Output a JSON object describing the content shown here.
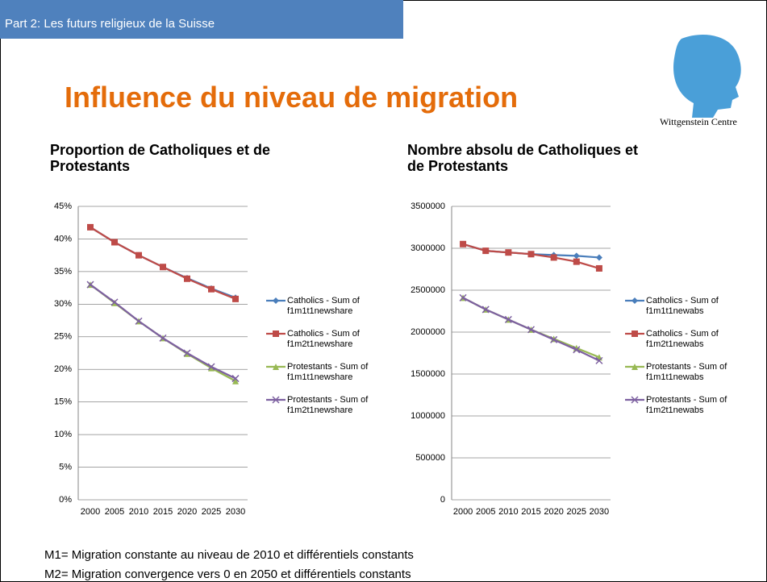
{
  "header": "Part 2: Les futurs religieux de la Suisse",
  "title": "Influence du niveau de migration",
  "logo_text": "Wittgenstein Centre",
  "chart_data": [
    {
      "type": "line",
      "title": "Proportion de Catholiques et de Protestants",
      "categories": [
        "2000",
        "2005",
        "2010",
        "2015",
        "2020",
        "2025",
        "2030"
      ],
      "ylim": [
        0,
        45
      ],
      "yticks": [
        {
          "value": 0,
          "label": "0%"
        },
        {
          "value": 5,
          "label": "5%"
        },
        {
          "value": 10,
          "label": "10%"
        },
        {
          "value": 15,
          "label": "15%"
        },
        {
          "value": 20,
          "label": "20%"
        },
        {
          "value": 25,
          "label": "25%"
        },
        {
          "value": 30,
          "label": "30%"
        },
        {
          "value": 35,
          "label": "35%"
        },
        {
          "value": 40,
          "label": "40%"
        },
        {
          "value": 45,
          "label": "45%"
        }
      ],
      "grid": true,
      "legend": "right",
      "series": [
        {
          "name": "Catholics - Sum of f1m1t1newshare",
          "color": "#4a7ebb",
          "marker": "diamond",
          "values": [
            41.8,
            39.5,
            37.5,
            35.7,
            34.0,
            32.4,
            31.0
          ]
        },
        {
          "name": "Catholics - Sum of f1m2t1newshare",
          "color": "#be4b48",
          "marker": "square",
          "values": [
            41.8,
            39.5,
            37.5,
            35.7,
            33.9,
            32.3,
            30.8
          ]
        },
        {
          "name": "Protestants - Sum of f1m1t1newshare",
          "color": "#98b954",
          "marker": "triangle",
          "values": [
            33.0,
            30.2,
            27.4,
            24.8,
            22.4,
            20.2,
            18.2
          ]
        },
        {
          "name": "Protestants - Sum of f1m2t1newshare",
          "color": "#7d60a0",
          "marker": "x",
          "values": [
            33.0,
            30.3,
            27.4,
            24.8,
            22.5,
            20.4,
            18.6
          ]
        }
      ]
    },
    {
      "type": "line",
      "title": "Nombre absolu de Catholiques et de Protestants",
      "categories": [
        "2000",
        "2005",
        "2010",
        "2015",
        "2020",
        "2025",
        "2030"
      ],
      "ylim": [
        0,
        3500000
      ],
      "yticks": [
        0,
        500000,
        1000000,
        1500000,
        2000000,
        2500000,
        3000000,
        3500000
      ],
      "grid": true,
      "legend": "right",
      "series": [
        {
          "name": "Catholics - Sum of f1m1t1newabs",
          "color": "#4a7ebb",
          "marker": "diamond",
          "values": [
            3050000,
            2970000,
            2950000,
            2930000,
            2920000,
            2910000,
            2890000
          ]
        },
        {
          "name": "Catholics - Sum of f1m2t1newabs",
          "color": "#be4b48",
          "marker": "square",
          "values": [
            3050000,
            2970000,
            2950000,
            2930000,
            2890000,
            2840000,
            2760000
          ]
        },
        {
          "name": "Protestants - Sum of f1m1t1newabs",
          "color": "#98b954",
          "marker": "triangle",
          "values": [
            2410000,
            2270000,
            2150000,
            2030000,
            1920000,
            1810000,
            1700000
          ]
        },
        {
          "name": "Protestants - Sum of f1m2t1newabs",
          "color": "#7d60a0",
          "marker": "x",
          "values": [
            2410000,
            2270000,
            2150000,
            2030000,
            1910000,
            1790000,
            1660000
          ]
        }
      ]
    }
  ],
  "notes": [
    "M1= Migration constante au niveau de 2010 et différentiels constants",
    "M2= Migration convergence vers 0 en 2050 et différentiels constants"
  ]
}
